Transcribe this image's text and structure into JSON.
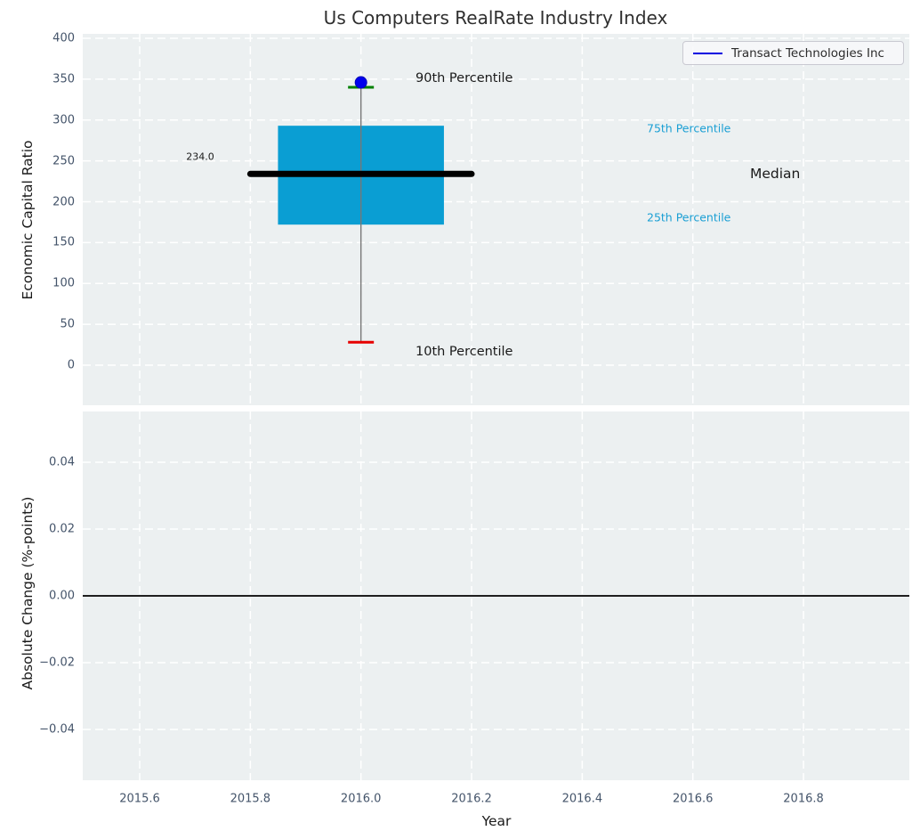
{
  "figure": {
    "title": "Us Computers RealRate Industry Index",
    "legend": {
      "label": "Transact Technologies Inc",
      "position": "upper right"
    }
  },
  "colors": {
    "axes_background": "#ecf0f1",
    "grid": "#ffffff",
    "tick_label": "#44546a",
    "box_fill": "#0a9ed3",
    "median_line": "#000000",
    "whisker_line": "#777777",
    "cap_90th": "#008000",
    "cap_10th": "#e60000",
    "company_dot": "#0000ee",
    "legend_line": "#0000e0",
    "percentile_label": "#1a9fd4",
    "zero_line": "#000000"
  },
  "chart_data": [
    {
      "type": "box",
      "title": "Us Computers RealRate Industry Index",
      "ylabel": "Economic Capital Ratio",
      "grid": true,
      "legend_position": "upper right",
      "xlim": [
        2015.5,
        2017.0
      ],
      "ylim": [
        -49,
        405
      ],
      "yticks": [
        0,
        50,
        100,
        150,
        200,
        250,
        300,
        350,
        400
      ],
      "ytick_labels": [
        "0",
        "50",
        "100",
        "150",
        "200",
        "250",
        "300",
        "350",
        "400"
      ],
      "xticks": [
        2015.6,
        2015.8,
        2016.0,
        2016.2,
        2016.4,
        2016.6,
        2016.8
      ],
      "x_center": 2016.0,
      "box_x_span": [
        2015.85,
        2016.15
      ],
      "median_x_span": [
        2015.8,
        2016.2
      ],
      "percentiles": {
        "p10": 28,
        "p25": 172,
        "median": 234,
        "p75": 293,
        "p90": 340
      },
      "median_value_label": "234.0",
      "company_point": {
        "name": "Transact Technologies Inc",
        "x": 2016.0,
        "y": 346
      },
      "annotations": [
        {
          "id": "p90-label",
          "text": "90th Percentile"
        },
        {
          "id": "p75-label",
          "text": "75th Percentile"
        },
        {
          "id": "median-label",
          "text": "Median"
        },
        {
          "id": "p25-label",
          "text": "25th Percentile"
        },
        {
          "id": "p10-label",
          "text": "10th Percentile"
        }
      ]
    },
    {
      "type": "line",
      "ylabel": "Absolute Change (%-points)",
      "xlabel": "Year",
      "grid": true,
      "xlim": [
        2015.5,
        2017.0
      ],
      "ylim": [
        -0.055,
        0.055
      ],
      "yticks": [
        0.04,
        0.02,
        0.0,
        -0.02,
        -0.04
      ],
      "ytick_labels": [
        "0.04",
        "0.02",
        "0.00",
        "−0.02",
        "−0.04"
      ],
      "xticks": [
        2015.6,
        2015.8,
        2016.0,
        2016.2,
        2016.4,
        2016.6,
        2016.8
      ],
      "xtick_labels": [
        "2015.6",
        "2015.8",
        "2016.0",
        "2016.2",
        "2016.4",
        "2016.6",
        "2016.8"
      ],
      "zero_line": 0.0,
      "series": []
    }
  ]
}
